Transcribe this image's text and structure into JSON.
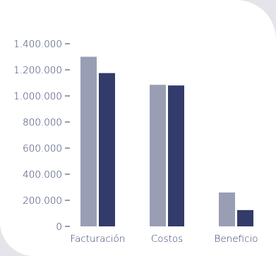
{
  "chart_data": {
    "type": "bar",
    "categories": [
      "Facturación",
      "Costos",
      "Beneficio"
    ],
    "series": [
      {
        "values": [
          1300000,
          1085000,
          260000
        ],
        "color": "#9a9eb4"
      },
      {
        "values": [
          1175000,
          1080000,
          125000
        ],
        "color": "#323b6a"
      }
    ],
    "ylim": [
      0,
      1400000
    ],
    "yticks": [
      0,
      200000,
      400000,
      600000,
      800000,
      1000000,
      1200000,
      1400000
    ],
    "ytick_labels": [
      "0",
      "200.000",
      "400.000",
      "600.000",
      "800.000",
      "1.000.000",
      "1.200.000",
      "1.400.000"
    ],
    "title": "",
    "xlabel": "",
    "ylabel": "",
    "grid": false,
    "legend": "none"
  },
  "colors": {
    "background": "#e4e4ea",
    "card": "#ffffff",
    "text": "#2f3967"
  }
}
